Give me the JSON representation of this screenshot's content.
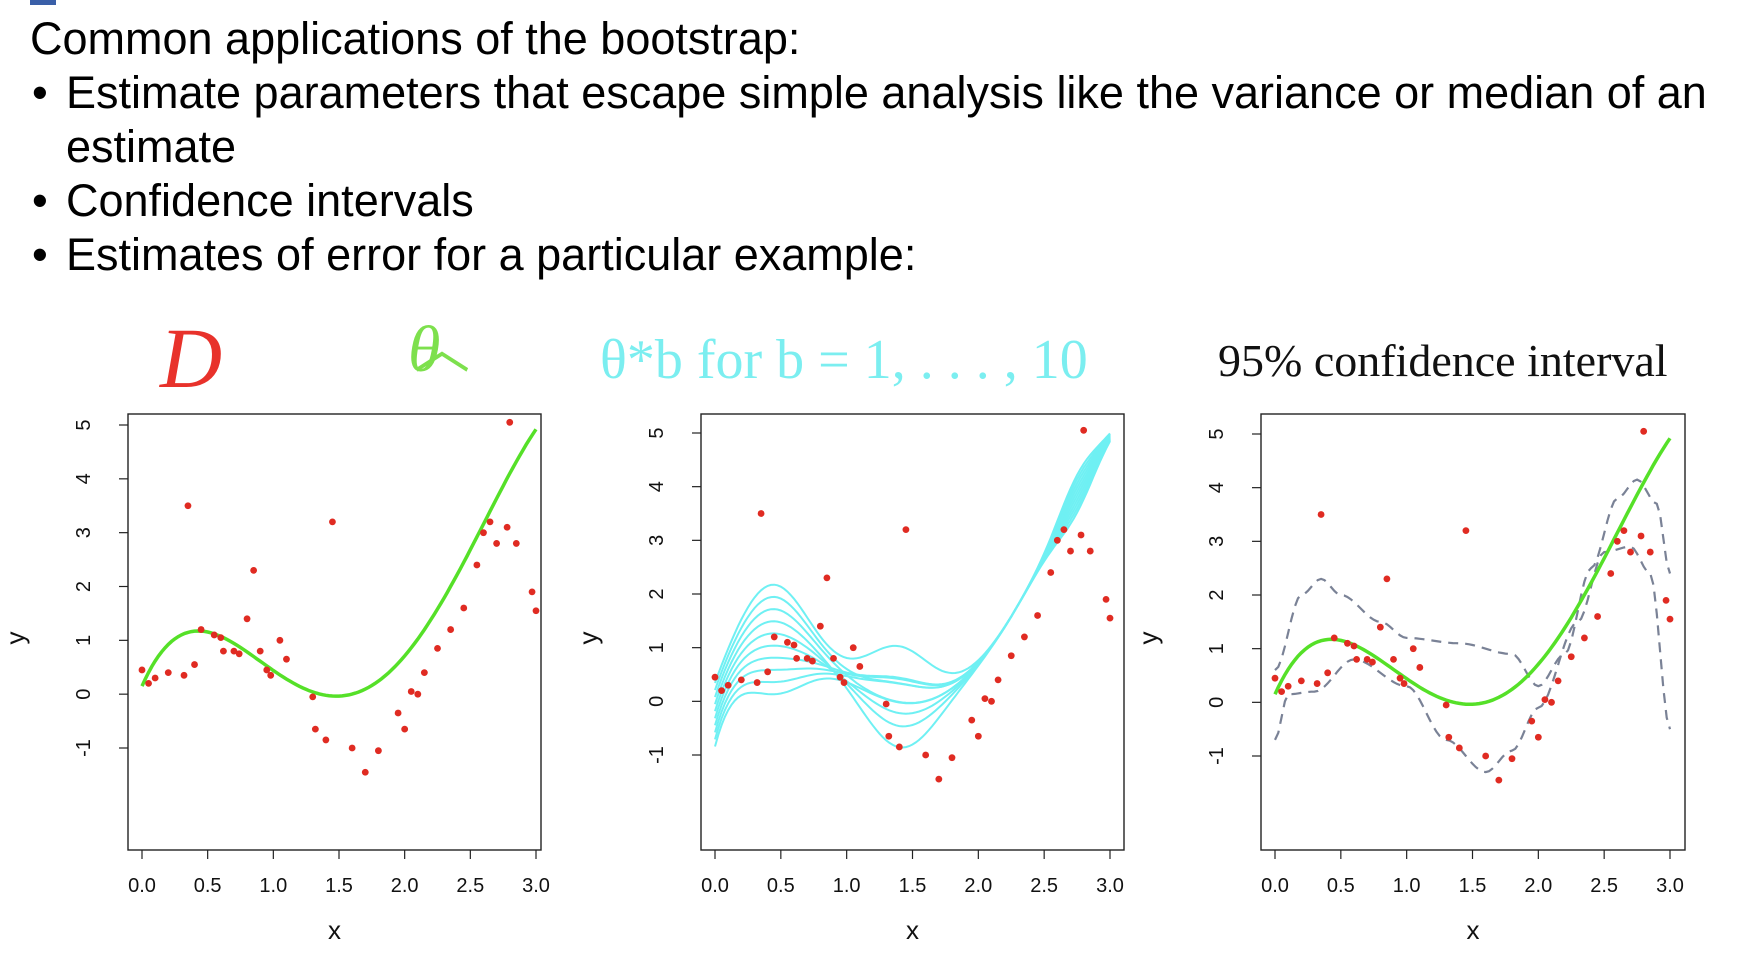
{
  "heading": "Common applications of the bootstrap:",
  "bullets": [
    "Estimate parameters that escape simple analysis like the variance or median of an estimate",
    "Confidence intervals",
    "Estimates of error for a particular example:"
  ],
  "labels": {
    "dataset": "D",
    "theta_hat": "θ",
    "bootstrap": "θ*b for b = 1, . . . , 10",
    "interval": "95% confidence interval"
  },
  "colors": {
    "points": "#e02b22",
    "fit": "#55e028",
    "bootstrap": "#6ff0f3",
    "interval": "#7a8296"
  },
  "chart_data": [
    {
      "type": "scatter",
      "xlabel": "x",
      "ylabel": "y",
      "xlim": [
        0,
        3
      ],
      "ylim": [
        -1.7,
        5.1
      ],
      "xticks": [
        "0.0",
        "0.5",
        "1.0",
        "1.5",
        "2.0",
        "2.5",
        "3.0"
      ],
      "yticks": [
        "-1",
        "0",
        "1",
        "2",
        "3",
        "4",
        "5"
      ],
      "series": [
        {
          "kind": "points",
          "x": [
            0.0,
            0.05,
            0.1,
            0.2,
            0.32,
            0.35,
            0.4,
            0.45,
            0.55,
            0.6,
            0.62,
            0.7,
            0.74,
            0.8,
            0.85,
            0.9,
            0.95,
            0.98,
            1.05,
            1.1,
            1.3,
            1.32,
            1.4,
            1.45,
            1.6,
            1.7,
            1.8,
            1.95,
            2.0,
            2.05,
            2.1,
            2.15,
            2.25,
            2.35,
            2.45,
            2.55,
            2.6,
            2.65,
            2.7,
            2.78,
            2.8,
            2.85,
            2.97,
            3.0
          ],
          "y": [
            0.45,
            0.2,
            0.3,
            0.4,
            0.35,
            3.5,
            0.55,
            1.2,
            1.1,
            1.05,
            0.8,
            0.8,
            0.75,
            1.4,
            2.3,
            0.8,
            0.45,
            0.35,
            1.0,
            0.65,
            -0.05,
            -0.65,
            -0.85,
            3.2,
            -1.0,
            -1.45,
            -1.05,
            -0.35,
            -0.65,
            0.05,
            0.0,
            0.4,
            0.85,
            1.2,
            1.6,
            2.4,
            3.0,
            3.2,
            2.8,
            3.1,
            5.05,
            2.8,
            1.9,
            1.55
          ]
        },
        {
          "kind": "fit",
          "coeffs": [
            0.15,
            5.52,
            -9.14,
            4.56,
            -0.65
          ]
        }
      ]
    },
    {
      "type": "line",
      "xlabel": "x",
      "ylabel": "y",
      "xlim": [
        0,
        3
      ],
      "ylim": [
        -1.7,
        5.1
      ],
      "xticks": [
        "0.0",
        "0.5",
        "1.0",
        "1.5",
        "2.0",
        "2.5",
        "3.0"
      ],
      "yticks": [
        "-1",
        "0",
        "1",
        "2",
        "3",
        "4",
        "5"
      ],
      "series": [
        {
          "kind": "points",
          "same_as": 0
        },
        {
          "kind": "bootstrap_curves",
          "count": 10
        }
      ]
    },
    {
      "type": "line",
      "xlabel": "x",
      "ylabel": "y",
      "xlim": [
        0,
        3
      ],
      "ylim": [
        -1.7,
        5.1
      ],
      "xticks": [
        "0.0",
        "0.5",
        "1.0",
        "1.5",
        "2.0",
        "2.5",
        "3.0"
      ],
      "yticks": [
        "-1",
        "0",
        "1",
        "2",
        "3",
        "4",
        "5"
      ],
      "series": [
        {
          "kind": "points",
          "same_as": 0
        },
        {
          "kind": "fit",
          "same_as": 0
        },
        {
          "kind": "interval_upper",
          "x": [
            0,
            0.2,
            0.35,
            0.5,
            0.8,
            1.0,
            1.4,
            1.8,
            2.0,
            2.2,
            2.4,
            2.6,
            2.75,
            2.9,
            3.0
          ],
          "y": [
            0.6,
            2.0,
            2.3,
            2.0,
            1.5,
            1.2,
            1.1,
            0.9,
            0.3,
            0.9,
            2.5,
            3.8,
            4.15,
            3.7,
            2.4
          ]
        },
        {
          "kind": "interval_lower",
          "x": [
            0,
            0.1,
            0.3,
            0.6,
            1.0,
            1.3,
            1.6,
            1.8,
            2.0,
            2.3,
            2.5,
            2.7,
            2.85,
            3.0
          ],
          "y": [
            -0.7,
            0.15,
            0.2,
            0.8,
            0.3,
            -0.7,
            -1.3,
            -0.9,
            -0.1,
            1.5,
            2.8,
            2.9,
            2.4,
            -0.5
          ]
        }
      ]
    }
  ]
}
